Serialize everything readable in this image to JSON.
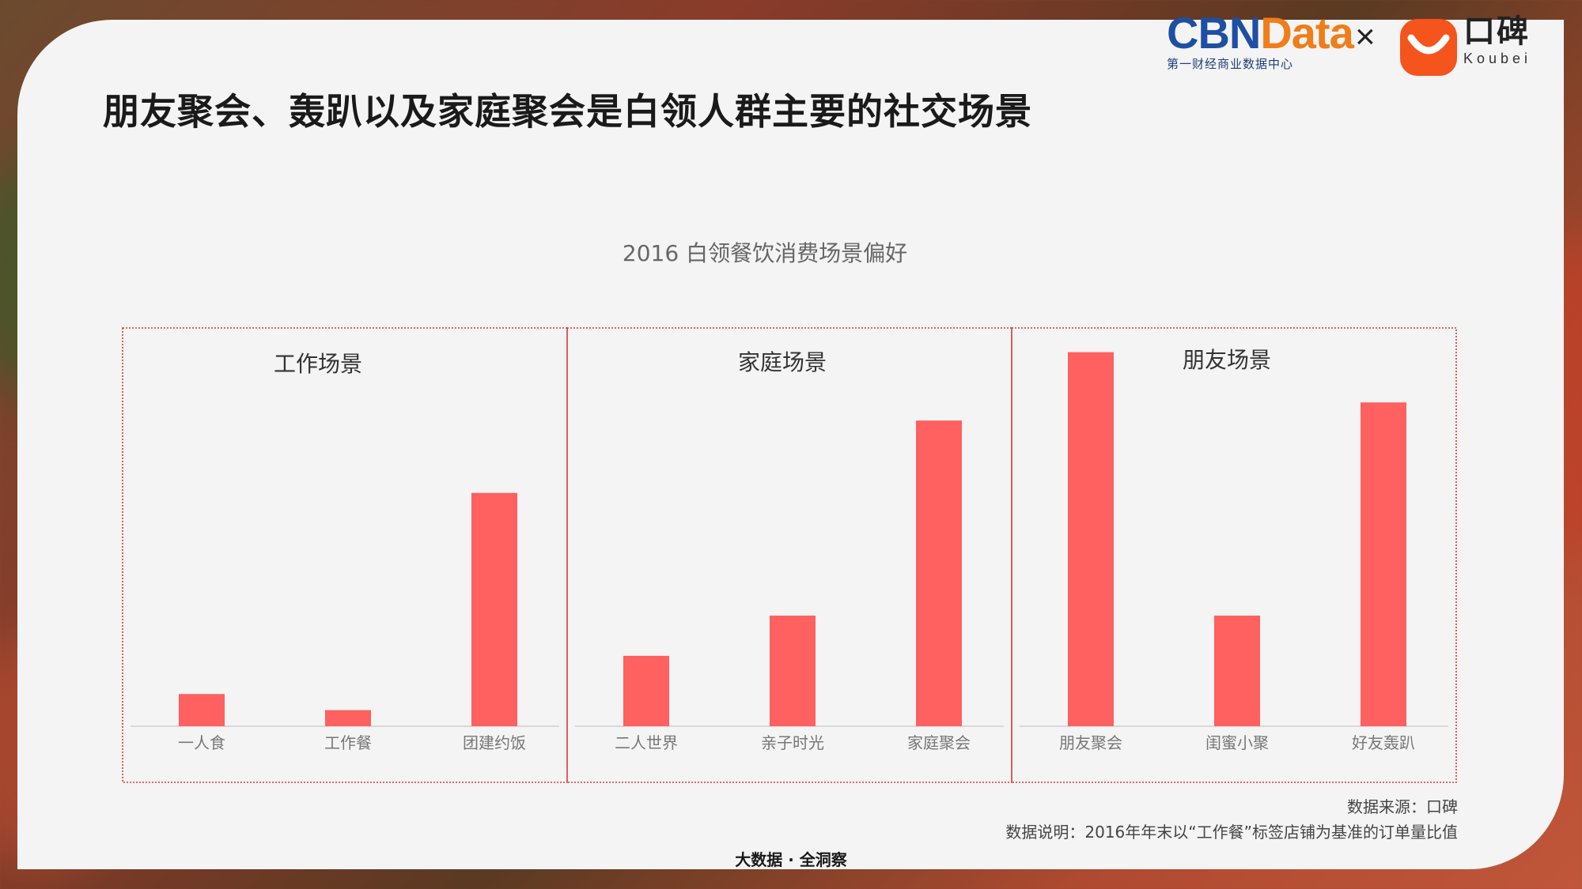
{
  "header": {
    "title": "朋友聚会、轰趴以及家庭聚会是白领人群主要的社交场景"
  },
  "logos": {
    "cbn_part1": "CBN",
    "cbn_part2": "Data",
    "cbn_sub": "第一财经商业数据中心",
    "times": "×",
    "koubei_cn": "口碑",
    "koubei_en": "Koubei"
  },
  "chart_data": {
    "type": "bar",
    "title": "2016 白领餐饮消费场景偏好",
    "groups": [
      {
        "name": "工作场景",
        "categories": [
          "一人食",
          "工作餐",
          "团建约饭"
        ],
        "values": [
          8,
          4,
          58
        ]
      },
      {
        "name": "家庭场景",
        "categories": [
          "二人世界",
          "亲子时光",
          "家庭聚会"
        ],
        "values": [
          17.5,
          27.5,
          76
        ]
      },
      {
        "name": "朋友场景",
        "categories": [
          "朋友聚会",
          "闺蜜小聚",
          "好友轰趴"
        ],
        "values": [
          93,
          27.5,
          80.5
        ]
      }
    ],
    "ylim": [
      0,
      100
    ],
    "bar_color": "#ff6060",
    "grid": false
  },
  "footer": {
    "source": "数据来源：口碑",
    "note": "数据说明：2016年年末以“工作餐”标签店铺为基准的订单量比值",
    "brand": "大数据 · 全洞察"
  }
}
